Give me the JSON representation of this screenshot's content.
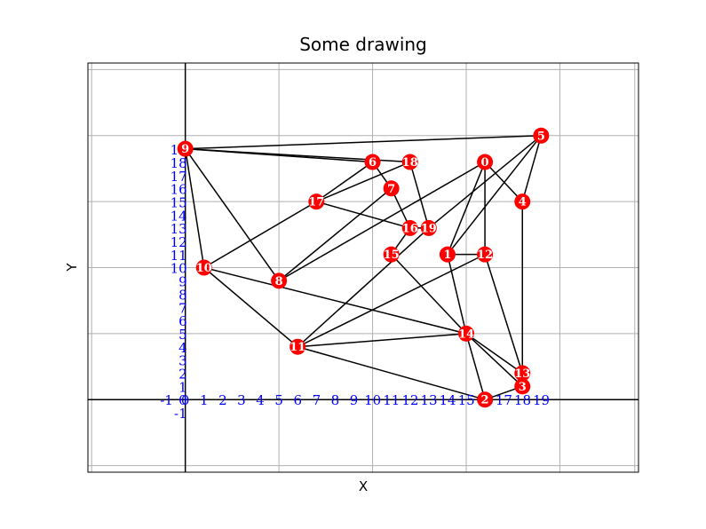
{
  "chart_data": {
    "type": "network",
    "title": "Some drawing",
    "xlabel": "X",
    "ylabel": "Y",
    "xlim": [
      -5.2,
      24.2
    ],
    "ylim": [
      -5.5,
      25.5
    ],
    "grid": true,
    "x_grid_lines": [
      -5,
      0,
      5,
      10,
      15,
      20,
      24
    ],
    "y_grid_lines": [
      -5,
      0,
      5,
      10,
      15,
      20,
      25
    ],
    "x_tick_labels": [
      "-1",
      "0",
      "1",
      "2",
      "3",
      "4",
      "5",
      "6",
      "7",
      "8",
      "9",
      "10",
      "11",
      "12",
      "13",
      "14",
      "15",
      "16",
      "17",
      "18",
      "19"
    ],
    "y_tick_labels": [
      "-1",
      "0",
      "1",
      "2",
      "3",
      "4",
      "5",
      "6",
      "7",
      "8",
      "9",
      "10",
      "11",
      "12",
      "13",
      "14",
      "15",
      "16",
      "17",
      "18",
      "19"
    ],
    "node_color": "#ff0000",
    "tick_color": "#0000ff",
    "nodes": [
      {
        "id": "0",
        "x": 16.0,
        "y": 18.0
      },
      {
        "id": "1",
        "x": 14.0,
        "y": 11.0
      },
      {
        "id": "2",
        "x": 16.0,
        "y": 0.0
      },
      {
        "id": "3",
        "x": 18.0,
        "y": 1.0
      },
      {
        "id": "4",
        "x": 18.0,
        "y": 15.0
      },
      {
        "id": "5",
        "x": 19.0,
        "y": 20.0
      },
      {
        "id": "6",
        "x": 10.0,
        "y": 18.0
      },
      {
        "id": "7",
        "x": 11.0,
        "y": 16.0
      },
      {
        "id": "8",
        "x": 5.0,
        "y": 9.0
      },
      {
        "id": "9",
        "x": 0.0,
        "y": 19.0
      },
      {
        "id": "10",
        "x": 1.0,
        "y": 10.0
      },
      {
        "id": "11",
        "x": 6.0,
        "y": 4.0
      },
      {
        "id": "12",
        "x": 16.0,
        "y": 11.0
      },
      {
        "id": "13",
        "x": 18.0,
        "y": 2.0
      },
      {
        "id": "14",
        "x": 15.0,
        "y": 5.0
      },
      {
        "id": "15",
        "x": 11.0,
        "y": 11.0
      },
      {
        "id": "16",
        "x": 12.0,
        "y": 13.0
      },
      {
        "id": "17",
        "x": 7.0,
        "y": 15.0
      },
      {
        "id": "18",
        "x": 12.0,
        "y": 18.0
      },
      {
        "id": "19",
        "x": 13.0,
        "y": 13.0
      }
    ],
    "edges": [
      [
        "9",
        "5"
      ],
      [
        "9",
        "6"
      ],
      [
        "9",
        "18"
      ],
      [
        "9",
        "10"
      ],
      [
        "9",
        "8"
      ],
      [
        "6",
        "17"
      ],
      [
        "6",
        "7"
      ],
      [
        "18",
        "17"
      ],
      [
        "18",
        "19"
      ],
      [
        "7",
        "16"
      ],
      [
        "7",
        "8"
      ],
      [
        "17",
        "16"
      ],
      [
        "17",
        "10"
      ],
      [
        "5",
        "19"
      ],
      [
        "5",
        "4"
      ],
      [
        "5",
        "1"
      ],
      [
        "0",
        "4"
      ],
      [
        "0",
        "1"
      ],
      [
        "0",
        "8"
      ],
      [
        "0",
        "12"
      ],
      [
        "4",
        "3"
      ],
      [
        "4",
        "13"
      ],
      [
        "1",
        "12"
      ],
      [
        "1",
        "14"
      ],
      [
        "12",
        "11"
      ],
      [
        "12",
        "13"
      ],
      [
        "16",
        "19"
      ],
      [
        "16",
        "15"
      ],
      [
        "19",
        "11"
      ],
      [
        "15",
        "14"
      ],
      [
        "10",
        "14"
      ],
      [
        "10",
        "11"
      ],
      [
        "11",
        "14"
      ],
      [
        "11",
        "2"
      ],
      [
        "14",
        "2"
      ],
      [
        "14",
        "3"
      ],
      [
        "14",
        "13"
      ],
      [
        "2",
        "3"
      ],
      [
        "13",
        "3"
      ]
    ]
  }
}
